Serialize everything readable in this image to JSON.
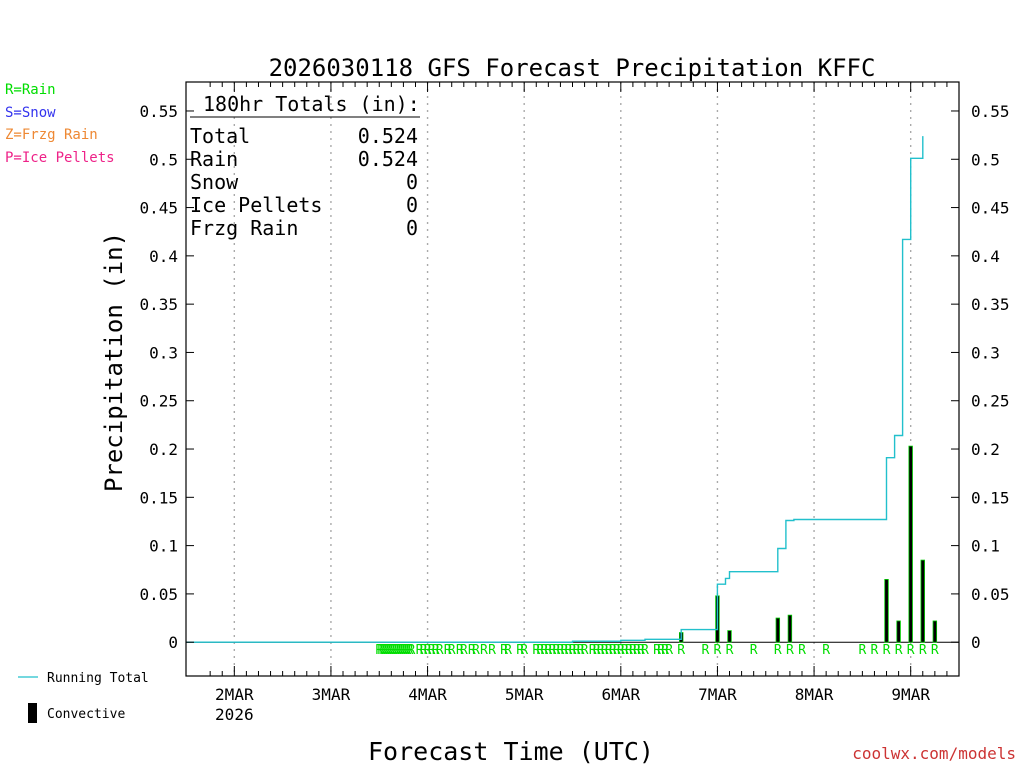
{
  "chart_data": {
    "type": "line+bar",
    "title": "2026030118 GFS Forecast Precipitation KFFC",
    "xlabel": "Forecast Time (UTC)",
    "ylabel": "Precipitation (in)",
    "ylim": [
      -0.035,
      0.58
    ],
    "xlim_hours": [
      -6,
      186
    ],
    "yticks": [
      "0",
      "0.05",
      "0.1",
      "0.15",
      "0.2",
      "0.25",
      "0.3",
      "0.35",
      "0.4",
      "0.45",
      "0.5",
      "0.55"
    ],
    "xticks": [
      {
        "label": "2MAR",
        "sublabel": "2026",
        "hour": 6
      },
      {
        "label": "3MAR",
        "sublabel": "",
        "hour": 30
      },
      {
        "label": "4MAR",
        "sublabel": "",
        "hour": 54
      },
      {
        "label": "5MAR",
        "sublabel": "",
        "hour": 78
      },
      {
        "label": "6MAR",
        "sublabel": "",
        "hour": 102
      },
      {
        "label": "7MAR",
        "sublabel": "",
        "hour": 126
      },
      {
        "label": "8MAR",
        "sublabel": "",
        "hour": 150
      },
      {
        "label": "9MAR",
        "sublabel": "",
        "hour": 174
      }
    ],
    "running_total": [
      [
        -6,
        0
      ],
      [
        90,
        0
      ],
      [
        90,
        0.001
      ],
      [
        102,
        0.001
      ],
      [
        102,
        0.002
      ],
      [
        108,
        0.002
      ],
      [
        108,
        0.003
      ],
      [
        117,
        0.003
      ],
      [
        117,
        0.013
      ],
      [
        126,
        0.013
      ],
      [
        126,
        0.06
      ],
      [
        128,
        0.06
      ],
      [
        128,
        0.066
      ],
      [
        129,
        0.066
      ],
      [
        129,
        0.073
      ],
      [
        141,
        0.073
      ],
      [
        141,
        0.097
      ],
      [
        143,
        0.097
      ],
      [
        143,
        0.126
      ],
      [
        145,
        0.126
      ],
      [
        145,
        0.127
      ],
      [
        168,
        0.127
      ],
      [
        168,
        0.191
      ],
      [
        170,
        0.191
      ],
      [
        170,
        0.214
      ],
      [
        172,
        0.214
      ],
      [
        172,
        0.417
      ],
      [
        174,
        0.417
      ],
      [
        174,
        0.501
      ],
      [
        177,
        0.501
      ],
      [
        177,
        0.524
      ]
    ],
    "convective_bars": [
      {
        "hour": 117,
        "value": 0.01
      },
      {
        "hour": 126,
        "value": 0.048
      },
      {
        "hour": 129,
        "value": 0.012
      },
      {
        "hour": 141,
        "value": 0.025
      },
      {
        "hour": 144,
        "value": 0.028
      },
      {
        "hour": 168,
        "value": 0.065
      },
      {
        "hour": 171,
        "value": 0.022
      },
      {
        "hour": 174,
        "value": 0.203
      },
      {
        "hour": 177,
        "value": 0.085
      },
      {
        "hour": 180,
        "value": 0.022
      }
    ],
    "ptype_markers": {
      "symbol": "R",
      "hours": [
        42,
        42.5,
        43,
        43.5,
        44,
        44.5,
        45,
        45.5,
        46,
        46.5,
        47,
        47.5,
        48,
        48.5,
        49,
        49.5,
        50,
        52,
        53,
        54,
        55,
        56,
        57,
        59,
        60,
        62,
        63,
        65,
        66,
        68,
        70,
        73,
        74,
        77,
        78,
        81,
        82,
        83,
        84,
        85,
        86,
        87,
        88,
        89,
        90,
        91,
        92,
        93,
        95,
        96,
        97,
        98,
        99,
        100,
        101,
        102,
        103,
        104,
        105,
        106,
        107,
        108,
        111,
        112,
        113,
        114,
        117,
        123,
        126,
        129,
        135,
        141,
        144,
        147,
        153,
        162,
        165,
        168,
        171,
        174,
        177,
        180
      ]
    },
    "totals_box": {
      "title": "180hr Totals (in):",
      "rows": [
        {
          "label": "Total",
          "value": "0.524"
        },
        {
          "label": "Rain",
          "value": "0.524"
        },
        {
          "label": "Snow",
          "value": "0"
        },
        {
          "label": "Ice Pellets",
          "value": "0"
        },
        {
          "label": "Frzg Rain",
          "value": "0"
        }
      ]
    },
    "legend": [
      {
        "text": "R=Rain",
        "color": "#00dd00"
      },
      {
        "text": "S=Snow",
        "color": "#3333ee"
      },
      {
        "text": "Z=Frzg Rain",
        "color": "#ee8833"
      },
      {
        "text": "P=Ice Pellets",
        "color": "#ee2288"
      }
    ],
    "series_legend": {
      "running_total": "Running Total",
      "convective": "Convective"
    },
    "colors": {
      "running_total": "#22c0cc",
      "convective_bar": "#000000",
      "convective_border": "#00cc00",
      "rain_marker": "#00dd00",
      "grid": "#aaaaaa",
      "footer": "#cc3333"
    }
  },
  "footer": {
    "url": "coolwx.com/models"
  }
}
